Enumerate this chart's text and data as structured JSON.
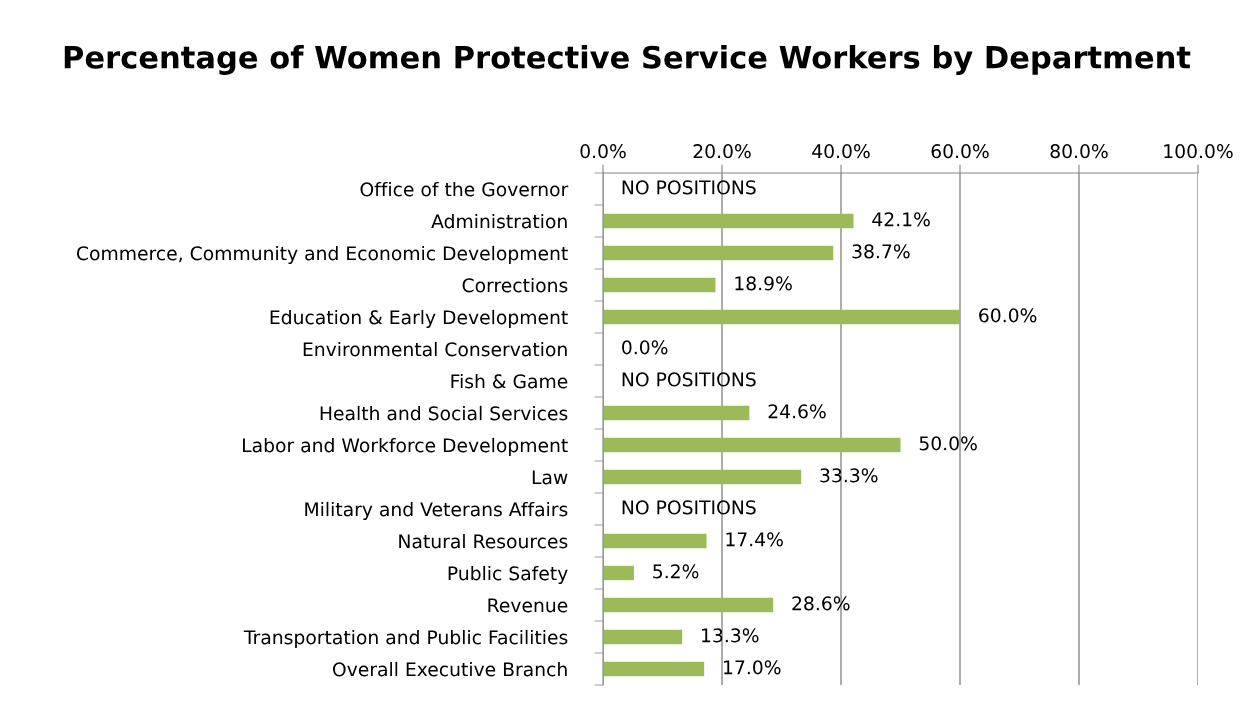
{
  "chart_data": {
    "type": "bar",
    "orientation": "horizontal",
    "title": "Percentage of Women Protective Service Workers by Department",
    "categories": [
      "Office of the Governor",
      "Administration",
      "Commerce, Community and Economic Development",
      "Corrections",
      "Education & Early Development",
      "Environmental Conservation",
      "Fish & Game",
      "Health and Social Services",
      "Labor and Workforce Development",
      "Law",
      "Military and Veterans Affairs",
      "Natural Resources",
      "Public Safety",
      "Revenue",
      "Transportation and Public Facilities",
      "Overall Executive Branch"
    ],
    "values": [
      null,
      42.1,
      38.7,
      18.9,
      60.0,
      0.0,
      null,
      24.6,
      50.0,
      33.3,
      null,
      17.4,
      5.2,
      28.6,
      13.3,
      17.0
    ],
    "value_labels": [
      "NO POSITIONS",
      "42.1%",
      "38.7%",
      "18.9%",
      "60.0%",
      "0.0%",
      "NO POSITIONS",
      "24.6%",
      "50.0%",
      "33.3%",
      "NO POSITIONS",
      "17.4%",
      "5.2%",
      "28.6%",
      "13.3%",
      "17.0%"
    ],
    "color": "#9bbb59",
    "xlim": [
      0,
      100
    ],
    "xticks": [
      {
        "value": 0,
        "label": "0.0%"
      },
      {
        "value": 20,
        "label": "20.0%"
      },
      {
        "value": 40,
        "label": "40.0%"
      },
      {
        "value": 60,
        "label": "60.0%"
      },
      {
        "value": 80,
        "label": "80.0%"
      },
      {
        "value": 100,
        "label": "100.0%"
      }
    ],
    "grid": "x",
    "legend": false
  }
}
